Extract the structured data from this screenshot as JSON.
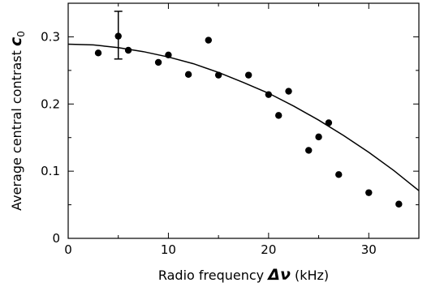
{
  "chart_data": {
    "type": "scatter",
    "title": "",
    "xlabel": {
      "prefix": "Radio frequency ",
      "symbol": "Δν",
      "suffix": " (kHz)"
    },
    "ylabel": {
      "prefix": "Average central contrast ",
      "symbol": "c",
      "subscript": "0"
    },
    "xlim": [
      0,
      35
    ],
    "ylim": [
      0,
      0.35
    ],
    "xticks": [
      0,
      10,
      20,
      30
    ],
    "yticks": [
      0,
      0.1,
      0.2,
      0.3
    ],
    "xtick_labels": [
      "0",
      "10",
      "20",
      "30"
    ],
    "ytick_labels": [
      "0",
      "0.1",
      "0.2",
      "0.3"
    ],
    "grid": false,
    "legend": "none",
    "marker_color": "#000000",
    "series": [
      {
        "x": [
          3,
          5,
          6,
          9,
          10,
          12,
          14,
          15,
          18,
          20,
          21,
          22,
          24,
          25,
          26,
          27,
          30,
          33
        ],
        "y": [
          0.276,
          0.301,
          0.28,
          0.262,
          0.273,
          0.244,
          0.295,
          0.243,
          0.243,
          0.214,
          0.183,
          0.219,
          0.131,
          0.151,
          0.172,
          0.095,
          0.068,
          0.051
        ]
      }
    ],
    "error_bars": [
      {
        "x": 5,
        "y": 0.301,
        "low": 0.267,
        "high": 0.338
      }
    ],
    "fit_curve": {
      "x": [
        0,
        2.5,
        5,
        7.5,
        10,
        12.5,
        15,
        17.5,
        20,
        22.5,
        25,
        27.5,
        30,
        32.5,
        35
      ],
      "y": [
        0.289,
        0.288,
        0.284,
        0.278,
        0.27,
        0.26,
        0.247,
        0.232,
        0.216,
        0.197,
        0.176,
        0.153,
        0.128,
        0.101,
        0.071
      ]
    }
  }
}
